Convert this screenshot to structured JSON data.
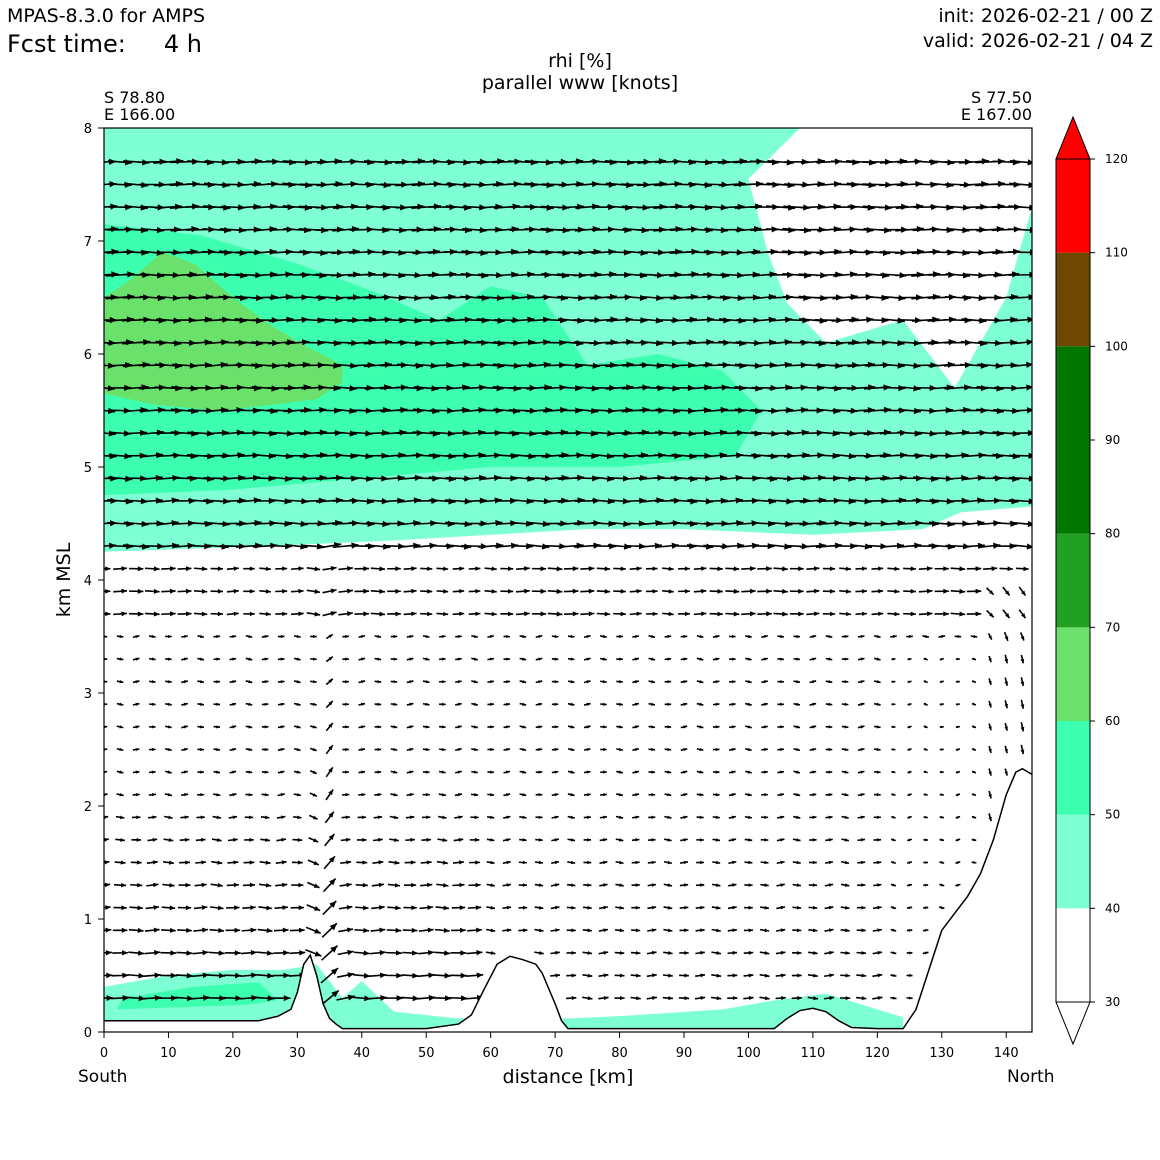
{
  "header": {
    "model": "MPAS-8.3.0 for AMPS",
    "fcst_label": "Fcst time:",
    "fcst_value": "4 h",
    "init": "init: 2026-02-21 / 00 Z",
    "valid": "valid: 2026-02-21 / 04 Z"
  },
  "chart_data": {
    "type": "cross-section",
    "title": "rhi [%]",
    "subtitle": "parallel www [knots]",
    "xlabel": "distance [km]",
    "ylabel": "km MSL",
    "xlim": [
      0,
      144
    ],
    "ylim": [
      0,
      8
    ],
    "xticks": [
      0,
      10,
      20,
      30,
      40,
      50,
      60,
      70,
      80,
      90,
      100,
      110,
      120,
      130,
      140
    ],
    "yticks": [
      0,
      1,
      2,
      3,
      4,
      5,
      6,
      7,
      8
    ],
    "left_end": {
      "lat": "S 78.80",
      "lon": "E 166.00",
      "side": "South"
    },
    "right_end": {
      "lat": "S 77.50",
      "lon": "E 167.00",
      "side": "North"
    },
    "colorbar": {
      "levels": [
        30,
        40,
        50,
        60,
        70,
        80,
        90,
        100,
        110,
        120
      ],
      "colors": [
        "#ffffff",
        "#7fffd4",
        "#3cffb0",
        "#6ae16a",
        "#22a022",
        "#007800",
        "#007800",
        "#6e4700",
        "#ff0000"
      ],
      "extend": "both"
    },
    "terrain": [
      [
        0,
        0.1
      ],
      [
        10,
        0.1
      ],
      [
        24,
        0.1
      ],
      [
        27,
        0.14
      ],
      [
        29,
        0.2
      ],
      [
        30,
        0.35
      ],
      [
        31,
        0.6
      ],
      [
        32,
        0.68
      ],
      [
        33,
        0.5
      ],
      [
        34,
        0.25
      ],
      [
        35,
        0.12
      ],
      [
        36,
        0.07
      ],
      [
        37,
        0.03
      ],
      [
        40,
        0.03
      ],
      [
        50,
        0.03
      ],
      [
        55,
        0.07
      ],
      [
        57,
        0.15
      ],
      [
        59,
        0.38
      ],
      [
        61,
        0.6
      ],
      [
        63,
        0.67
      ],
      [
        65,
        0.64
      ],
      [
        67,
        0.6
      ],
      [
        68,
        0.52
      ],
      [
        70,
        0.25
      ],
      [
        71,
        0.1
      ],
      [
        72,
        0.03
      ],
      [
        80,
        0.03
      ],
      [
        90,
        0.03
      ],
      [
        100,
        0.03
      ],
      [
        104,
        0.03
      ],
      [
        106,
        0.12
      ],
      [
        108,
        0.19
      ],
      [
        110,
        0.21
      ],
      [
        112,
        0.18
      ],
      [
        114,
        0.1
      ],
      [
        116,
        0.04
      ],
      [
        120,
        0.03
      ],
      [
        124,
        0.03
      ],
      [
        126,
        0.2
      ],
      [
        128,
        0.55
      ],
      [
        130,
        0.9
      ],
      [
        132,
        1.05
      ],
      [
        134,
        1.2
      ],
      [
        136,
        1.4
      ],
      [
        138,
        1.7
      ],
      [
        140,
        2.1
      ],
      [
        141.5,
        2.3
      ],
      [
        142.5,
        2.33
      ],
      [
        144,
        2.28
      ]
    ],
    "rhi_regions": [
      {
        "level": 40,
        "color": "#7fffd4",
        "points": [
          [
            0,
            4.25
          ],
          [
            25,
            4.3
          ],
          [
            45,
            4.35
          ],
          [
            60,
            4.4
          ],
          [
            75,
            4.45
          ],
          [
            90,
            4.45
          ],
          [
            110,
            4.4
          ],
          [
            127,
            4.45
          ],
          [
            133,
            4.6
          ],
          [
            144,
            4.65
          ],
          [
            144,
            7.3
          ],
          [
            140,
            6.5
          ],
          [
            132,
            5.7
          ],
          [
            124,
            6.3
          ],
          [
            112,
            6.1
          ],
          [
            106,
            6.45
          ],
          [
            103,
            6.9
          ],
          [
            100,
            7.55
          ],
          [
            108,
            8
          ],
          [
            70,
            8
          ],
          [
            20,
            8
          ],
          [
            0,
            8
          ]
        ]
      },
      {
        "level": 50,
        "color": "#3cffb0",
        "points": [
          [
            0,
            4.75
          ],
          [
            20,
            4.8
          ],
          [
            40,
            4.9
          ],
          [
            60,
            5.0
          ],
          [
            80,
            5.0
          ],
          [
            98,
            5.1
          ],
          [
            102,
            5.5
          ],
          [
            96,
            5.85
          ],
          [
            86,
            6.0
          ],
          [
            75,
            5.9
          ],
          [
            68,
            6.5
          ],
          [
            60,
            6.6
          ],
          [
            52,
            6.3
          ],
          [
            42,
            6.55
          ],
          [
            30,
            6.8
          ],
          [
            15,
            7.05
          ],
          [
            0,
            7.15
          ]
        ]
      },
      {
        "level": 60,
        "color": "#6ae16a",
        "points": [
          [
            0,
            5.65
          ],
          [
            8,
            5.55
          ],
          [
            18,
            5.5
          ],
          [
            26,
            5.55
          ],
          [
            33,
            5.6
          ],
          [
            37,
            5.75
          ],
          [
            37,
            5.9
          ],
          [
            32,
            6.05
          ],
          [
            26,
            6.25
          ],
          [
            20,
            6.5
          ],
          [
            14,
            6.8
          ],
          [
            9,
            6.9
          ],
          [
            4,
            6.65
          ],
          [
            0,
            6.5
          ]
        ]
      }
    ],
    "wind_vectors": "u-w arrows on a 2.5 km x 0.2 km grid (parallel wind, knots)"
  }
}
